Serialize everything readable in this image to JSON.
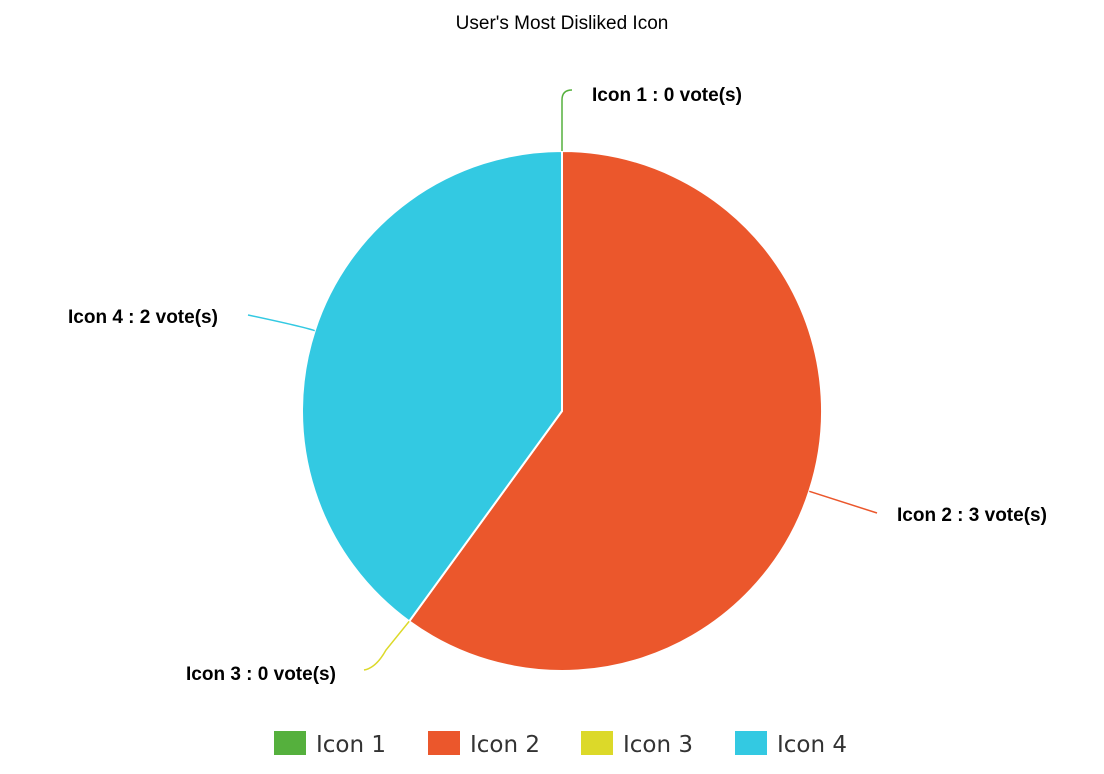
{
  "chart_data": {
    "type": "pie",
    "title": "User's Most Disliked Icon",
    "unit_suffix": "vote(s)",
    "slices": [
      {
        "label": "Icon 1",
        "value": 0,
        "color": "#55b03d"
      },
      {
        "label": "Icon 2",
        "value": 3,
        "color": "#eb572c"
      },
      {
        "label": "Icon 3",
        "value": 0,
        "color": "#dcd929"
      },
      {
        "label": "Icon 4",
        "value": 2,
        "color": "#33c9e2"
      }
    ],
    "data_labels": [
      "Icon 1 : 0 vote(s)",
      "Icon 2 : 3 vote(s)",
      "Icon 3 : 0 vote(s)",
      "Icon 4 : 2 vote(s)"
    ],
    "legend": {
      "position": "bottom",
      "entries": [
        "Icon 1",
        "Icon 2",
        "Icon 3",
        "Icon 4"
      ]
    }
  }
}
